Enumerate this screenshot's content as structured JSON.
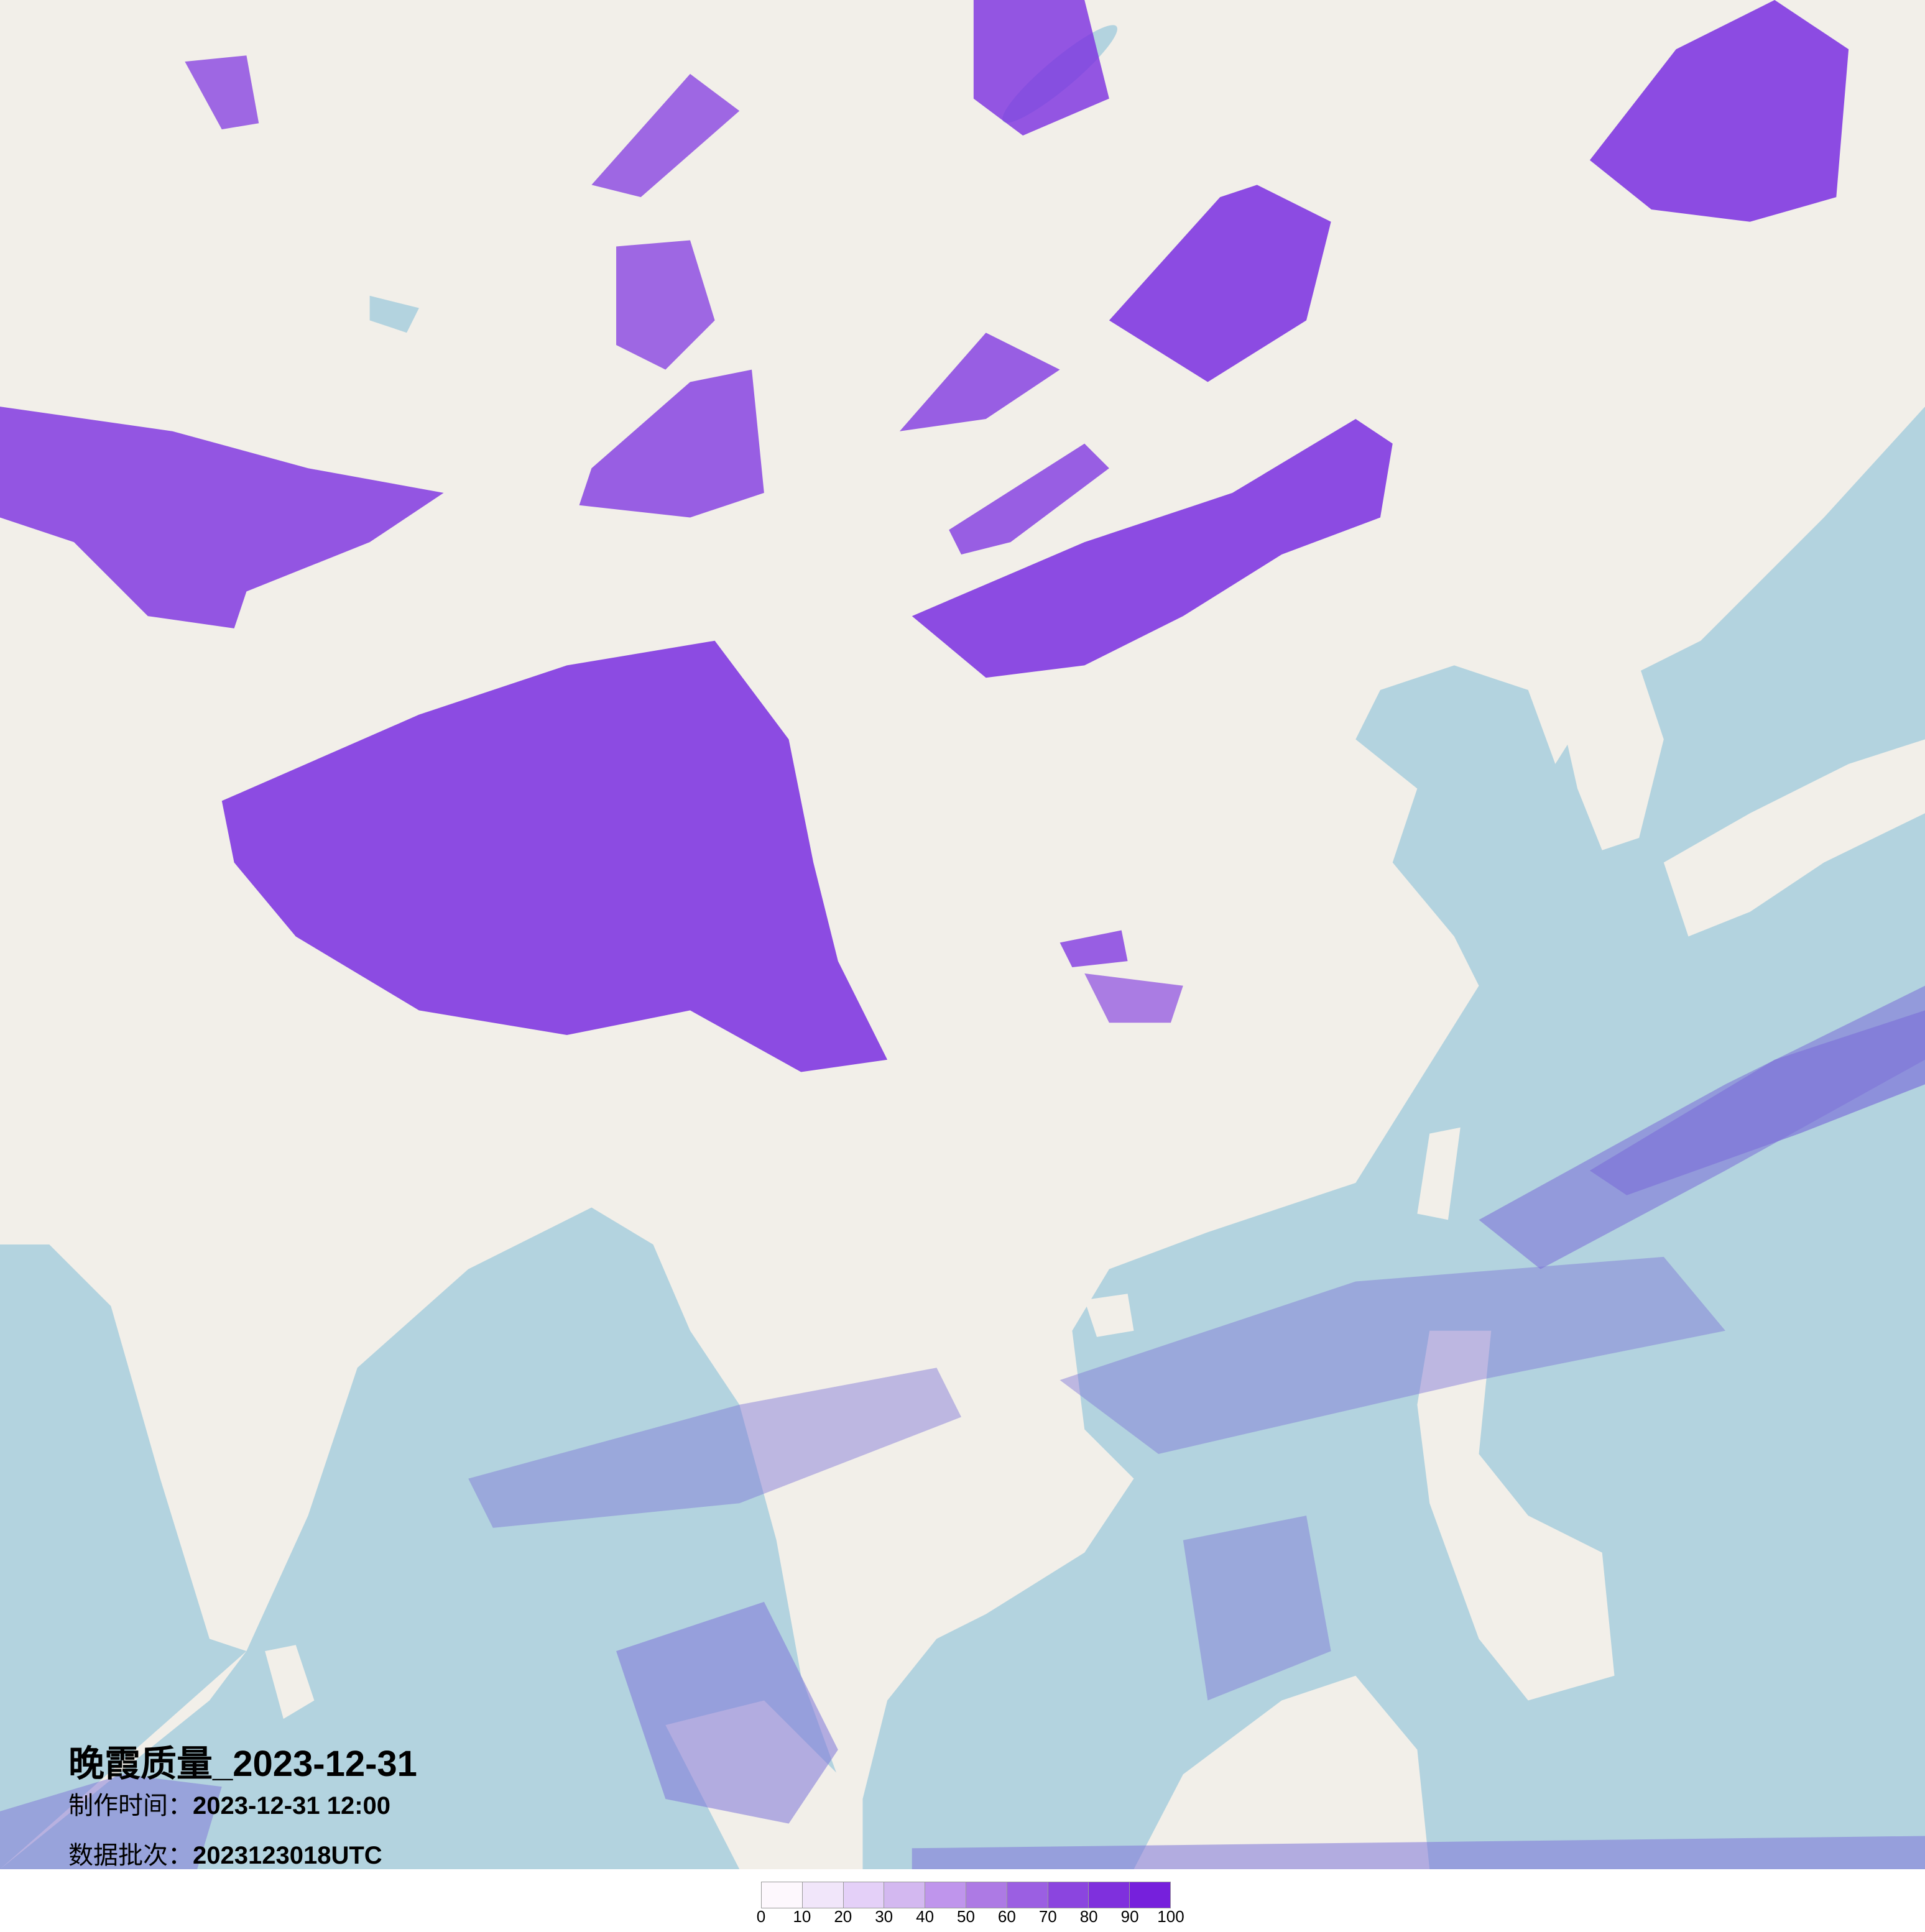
{
  "title": "晚霞质量_2023-12-31",
  "production_time": {
    "label": "制作时间：",
    "value": "2023-12-31 12:00"
  },
  "data_batch": {
    "label": "数据批次：",
    "value": "2023123018UTC"
  },
  "legend": {
    "ticks": [
      "0",
      "10",
      "20",
      "30",
      "40",
      "50",
      "60",
      "70",
      "80",
      "90",
      "100"
    ],
    "colors": [
      "#fdf8fd",
      "#f1e6fa",
      "#e4d0f8",
      "#d3b8f0",
      "#bf95ec",
      "#ad7ae4",
      "#9b5fe2",
      "#8b45df",
      "#7f30dd",
      "#7620dc"
    ]
  },
  "map_colors": {
    "land": "#f2efe9",
    "sea": "#b3d3df",
    "overlay": "#7a2ee0",
    "sea_overlay": "#7d74d8"
  }
}
